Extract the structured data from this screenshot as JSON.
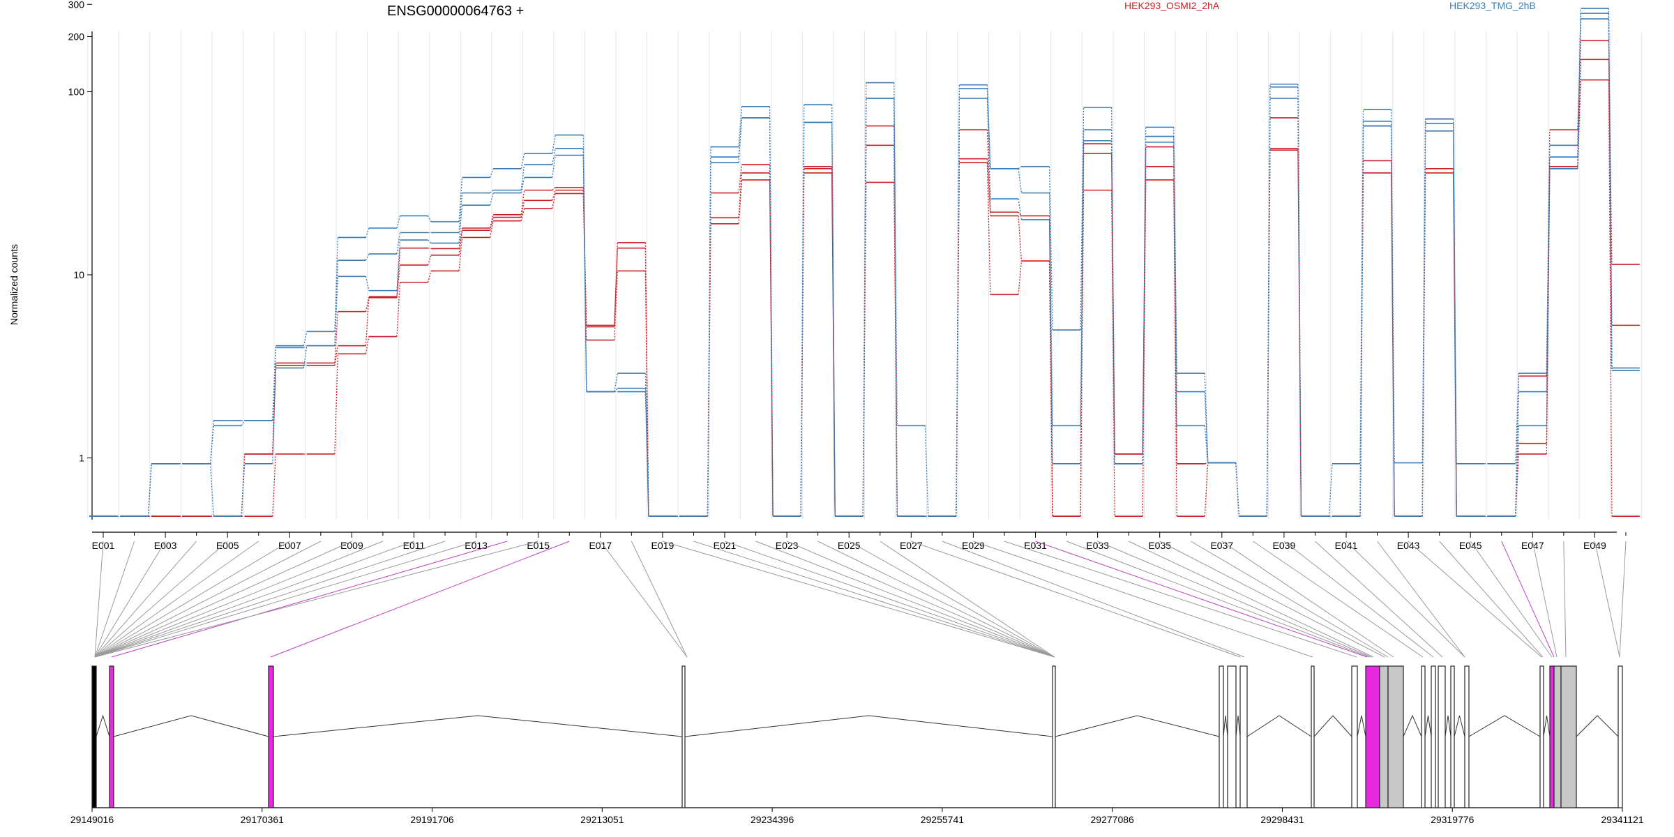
{
  "chart_data": {
    "type": "line",
    "title": "ENSG00000064763 +",
    "ylabel": "Normalized counts",
    "yscale": "log",
    "ylim": [
      0.48,
      340
    ],
    "yticks": [
      1,
      10,
      100,
      200,
      300
    ],
    "ytick_labels": [
      "1",
      "10",
      "100",
      "200",
      "300"
    ],
    "grid": "vertical",
    "colors": {
      "red": "#cc2127",
      "blue": "#3a7cb5",
      "highlight": "#e62ae0",
      "gray": "#c8c8c8"
    },
    "legend": [
      {
        "name": "HEK293_OSMI2_2hA",
        "color": "#cc2127"
      },
      {
        "name": "HEK293_TMG_2hB",
        "color": "#3a7cb5"
      }
    ],
    "exon_labels": [
      "E001",
      "E003",
      "E005",
      "E007",
      "E009",
      "E011",
      "E013",
      "E015",
      "E017",
      "E019",
      "E021",
      "E023",
      "E025",
      "E027",
      "E029",
      "E031",
      "E033",
      "E035",
      "E037",
      "E039",
      "E041",
      "E043",
      "E045",
      "E047",
      "E049"
    ],
    "series": [
      {
        "group": "red",
        "values": [
          0.48,
          0.48,
          0.48,
          0.48,
          0.48,
          0.48,
          1.05,
          1.05,
          3.7,
          4.6,
          9.1,
          10.5,
          16.0,
          19.7,
          23.0,
          27.8,
          4.4,
          10.5,
          0.48,
          0.48,
          19.0,
          33.0,
          0.48,
          36.0,
          0.48,
          32.0,
          0.48,
          0.48,
          41.0,
          7.8,
          11.9,
          0.48,
          29.0,
          0.48,
          33.0,
          0.48,
          0.94,
          0.48,
          48.0,
          0.48,
          0.48,
          36.0,
          0.48,
          36.0,
          0.48,
          0.48,
          1.05,
          38.0,
          116.0,
          0.48
        ]
      },
      {
        "group": "red",
        "values": [
          0.48,
          0.48,
          0.48,
          0.48,
          0.48,
          1.05,
          3.2,
          3.2,
          4.1,
          7.6,
          11.3,
          12.8,
          17.5,
          20.6,
          25.5,
          29.0,
          5.2,
          14.0,
          0.48,
          0.48,
          20.5,
          36.0,
          0.48,
          38.0,
          0.48,
          51.0,
          0.48,
          0.48,
          43.0,
          21.0,
          11.9,
          0.48,
          46.0,
          1.05,
          39.0,
          0.93,
          0.94,
          0.48,
          49.0,
          0.48,
          0.48,
          42.0,
          0.48,
          38.0,
          0.48,
          0.48,
          1.2,
          39.0,
          150.0,
          5.3
        ]
      },
      {
        "group": "red",
        "values": [
          0.48,
          0.48,
          0.48,
          0.48,
          0.48,
          1.05,
          3.3,
          3.3,
          6.3,
          7.5,
          14.0,
          13.9,
          18.0,
          21.3,
          29.0,
          30.0,
          5.3,
          15.0,
          0.48,
          0.48,
          28.0,
          40.0,
          0.48,
          39.0,
          0.48,
          65.0,
          0.48,
          0.48,
          62.0,
          22.0,
          21.0,
          0.48,
          52.0,
          1.05,
          50.0,
          0.93,
          0.94,
          0.48,
          72.0,
          0.48,
          0.48,
          65.0,
          0.48,
          71.0,
          0.48,
          0.48,
          2.8,
          62.0,
          190.0,
          11.4
        ]
      },
      {
        "group": "blue",
        "values": [
          0.48,
          0.48,
          0.93,
          0.93,
          0.48,
          0.93,
          3.1,
          4.1,
          9.8,
          8.2,
          15.5,
          14.9,
          24.0,
          28.0,
          34.0,
          45.0,
          2.3,
          2.3,
          0.48,
          0.48,
          41.0,
          72.0,
          0.48,
          68.0,
          0.48,
          92.0,
          0.48,
          0.48,
          92.0,
          26.0,
          20.0,
          0.93,
          54.0,
          0.93,
          53.0,
          1.5,
          0.94,
          0.48,
          92.0,
          0.48,
          0.48,
          65.0,
          0.48,
          61.0,
          0.48,
          0.48,
          1.5,
          38.0,
          250.0,
          3.0
        ]
      },
      {
        "group": "blue",
        "values": [
          0.48,
          0.48,
          0.93,
          0.93,
          1.5,
          1.6,
          4.0,
          4.1,
          12.0,
          13.0,
          17.0,
          17.0,
          28.0,
          29.0,
          40.0,
          49.0,
          2.3,
          2.4,
          0.48,
          0.48,
          44.0,
          72.0,
          0.48,
          68.0,
          0.48,
          92.0,
          0.48,
          0.48,
          104.0,
          38.0,
          28.0,
          1.5,
          62.0,
          0.93,
          57.0,
          2.3,
          0.94,
          0.48,
          106.0,
          0.48,
          0.48,
          69.0,
          0.48,
          67.0,
          0.48,
          0.48,
          2.3,
          44.0,
          268.0,
          3.0
        ]
      },
      {
        "group": "blue",
        "values": [
          0.48,
          0.48,
          0.93,
          0.93,
          1.6,
          1.6,
          4.1,
          4.9,
          16.0,
          18.0,
          21.0,
          19.5,
          34.0,
          38.0,
          46.0,
          58.0,
          2.3,
          2.9,
          0.48,
          0.48,
          50.0,
          83.0,
          0.48,
          85.0,
          0.48,
          112.0,
          1.5,
          0.48,
          109.0,
          38.0,
          39.0,
          5.0,
          82.0,
          0.93,
          64.0,
          2.9,
          0.94,
          0.48,
          110.0,
          0.48,
          0.93,
          80.0,
          0.94,
          71.0,
          0.93,
          0.93,
          2.9,
          51.0,
          285.0,
          3.1
        ]
      }
    ],
    "genomic_ticks": [
      "29149016",
      "29170361",
      "29191706",
      "29213051",
      "29234396",
      "29255741",
      "29277086",
      "29298431",
      "29319776",
      "29341121"
    ]
  }
}
